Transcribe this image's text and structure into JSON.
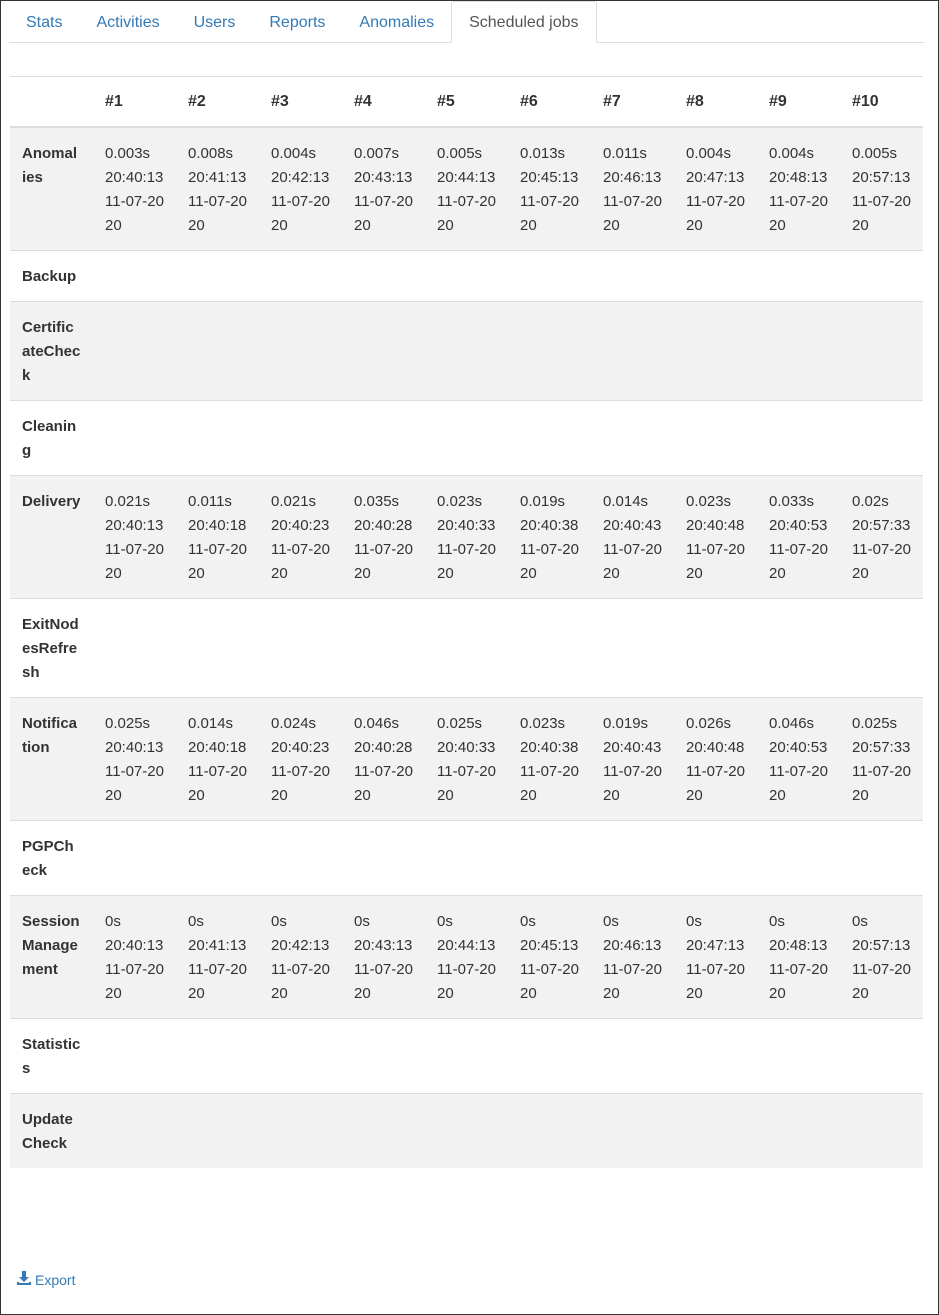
{
  "tabs": [
    {
      "label": "Stats",
      "active": false
    },
    {
      "label": "Activities",
      "active": false
    },
    {
      "label": "Users",
      "active": false
    },
    {
      "label": "Reports",
      "active": false
    },
    {
      "label": "Anomalies",
      "active": false
    },
    {
      "label": "Scheduled jobs",
      "active": true
    }
  ],
  "table": {
    "columns": [
      "",
      "#1",
      "#2",
      "#3",
      "#4",
      "#5",
      "#6",
      "#7",
      "#8",
      "#9",
      "#10"
    ],
    "rows": [
      {
        "name": "Anomalies",
        "cells": [
          [
            "0.003s",
            "20:40:13",
            "11-07-2020"
          ],
          [
            "0.008s",
            "20:41:13",
            "11-07-2020"
          ],
          [
            "0.004s",
            "20:42:13",
            "11-07-2020"
          ],
          [
            "0.007s",
            "20:43:13",
            "11-07-2020"
          ],
          [
            "0.005s",
            "20:44:13",
            "11-07-2020"
          ],
          [
            "0.013s",
            "20:45:13",
            "11-07-2020"
          ],
          [
            "0.011s",
            "20:46:13",
            "11-07-2020"
          ],
          [
            "0.004s",
            "20:47:13",
            "11-07-2020"
          ],
          [
            "0.004s",
            "20:48:13",
            "11-07-2020"
          ],
          [
            "0.005s",
            "20:57:13",
            "11-07-2020"
          ]
        ]
      },
      {
        "name": "Backup",
        "cells": []
      },
      {
        "name": "CertificateCheck",
        "cells": []
      },
      {
        "name": "Cleaning",
        "cells": []
      },
      {
        "name": "Delivery",
        "cells": [
          [
            "0.021s",
            "20:40:13",
            "11-07-2020"
          ],
          [
            "0.011s",
            "20:40:18",
            "11-07-2020"
          ],
          [
            "0.021s",
            "20:40:23",
            "11-07-2020"
          ],
          [
            "0.035s",
            "20:40:28",
            "11-07-2020"
          ],
          [
            "0.023s",
            "20:40:33",
            "11-07-2020"
          ],
          [
            "0.019s",
            "20:40:38",
            "11-07-2020"
          ],
          [
            "0.014s",
            "20:40:43",
            "11-07-2020"
          ],
          [
            "0.023s",
            "20:40:48",
            "11-07-2020"
          ],
          [
            "0.033s",
            "20:40:53",
            "11-07-2020"
          ],
          [
            "0.02s",
            "20:57:33",
            "11-07-2020"
          ]
        ]
      },
      {
        "name": "ExitNodesRefresh",
        "cells": []
      },
      {
        "name": "Notification",
        "cells": [
          [
            "0.025s",
            "20:40:13",
            "11-07-2020"
          ],
          [
            "0.014s",
            "20:40:18",
            "11-07-2020"
          ],
          [
            "0.024s",
            "20:40:23",
            "11-07-2020"
          ],
          [
            "0.046s",
            "20:40:28",
            "11-07-2020"
          ],
          [
            "0.025s",
            "20:40:33",
            "11-07-2020"
          ],
          [
            "0.023s",
            "20:40:38",
            "11-07-2020"
          ],
          [
            "0.019s",
            "20:40:43",
            "11-07-2020"
          ],
          [
            "0.026s",
            "20:40:48",
            "11-07-2020"
          ],
          [
            "0.046s",
            "20:40:53",
            "11-07-2020"
          ],
          [
            "0.025s",
            "20:57:33",
            "11-07-2020"
          ]
        ]
      },
      {
        "name": "PGPCheck",
        "cells": []
      },
      {
        "name": "SessionManagement",
        "cells": [
          [
            "0s",
            "20:40:13",
            "11-07-2020"
          ],
          [
            "0s",
            "20:41:13",
            "11-07-2020"
          ],
          [
            "0s",
            "20:42:13",
            "11-07-2020"
          ],
          [
            "0s",
            "20:43:13",
            "11-07-2020"
          ],
          [
            "0s",
            "20:44:13",
            "11-07-2020"
          ],
          [
            "0s",
            "20:45:13",
            "11-07-2020"
          ],
          [
            "0s",
            "20:46:13",
            "11-07-2020"
          ],
          [
            "0s",
            "20:47:13",
            "11-07-2020"
          ],
          [
            "0s",
            "20:48:13",
            "11-07-2020"
          ],
          [
            "0s",
            "20:57:13",
            "11-07-2020"
          ]
        ]
      },
      {
        "name": "Statistics",
        "cells": []
      },
      {
        "name": "Update Check",
        "cells": []
      }
    ]
  },
  "export": {
    "label": "Export",
    "icon": "download-icon"
  },
  "colors": {
    "link": "#337ab7",
    "stripe": "#f2f2f2",
    "border": "#dddddd"
  }
}
